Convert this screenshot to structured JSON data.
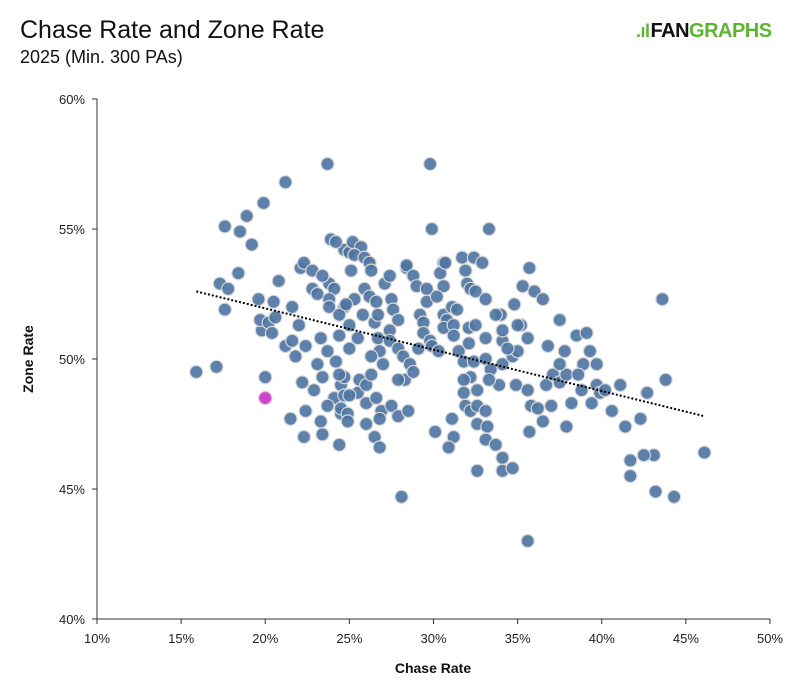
{
  "header": {
    "title": "Chase Rate and Zone Rate",
    "subtitle": "2025 (Min. 300 PAs)",
    "logo_text_1": "FAN",
    "logo_text_2": "GRAPHS"
  },
  "colors": {
    "point": "#4f76a3",
    "highlight": "#cc44cc",
    "trend": "#000000",
    "logo_green": "#5cb531"
  },
  "chart_data": {
    "type": "scatter",
    "title": "Chase Rate and Zone Rate",
    "subtitle": "2025 (Min. 300 PAs)",
    "xlabel": "Chase Rate",
    "ylabel": "Zone Rate",
    "xlim": [
      10,
      50
    ],
    "ylim": [
      40,
      60
    ],
    "xticks": [
      10,
      15,
      20,
      25,
      30,
      35,
      40,
      45,
      50
    ],
    "yticks": [
      40,
      45,
      50,
      55,
      60
    ],
    "xtick_labels": [
      "10%",
      "15%",
      "20%",
      "25%",
      "30%",
      "35%",
      "40%",
      "45%",
      "50%"
    ],
    "ytick_labels": [
      "40%",
      "45%",
      "50%",
      "55%",
      "60%"
    ],
    "grid": false,
    "trendline": {
      "style": "dotted",
      "x": [
        15.9,
        46.1
      ],
      "y": [
        52.6,
        47.8
      ]
    },
    "highlight": {
      "x": 20.0,
      "y": 48.5
    },
    "points": [
      [
        15.9,
        49.5
      ],
      [
        17.1,
        49.7
      ],
      [
        17.6,
        55.1
      ],
      [
        17.3,
        52.9
      ],
      [
        17.6,
        51.9
      ],
      [
        17.8,
        52.7
      ],
      [
        18.4,
        53.3
      ],
      [
        18.5,
        54.9
      ],
      [
        18.9,
        55.5
      ],
      [
        19.2,
        54.4
      ],
      [
        19.9,
        56.0
      ],
      [
        21.2,
        56.8
      ],
      [
        23.7,
        57.5
      ],
      [
        29.8,
        57.5
      ],
      [
        29.9,
        55.0
      ],
      [
        33.3,
        55.0
      ],
      [
        19.6,
        52.3
      ],
      [
        19.8,
        51.1
      ],
      [
        19.7,
        51.5
      ],
      [
        20.0,
        49.3
      ],
      [
        20.2,
        51.4
      ],
      [
        20.5,
        52.2
      ],
      [
        20.4,
        51.0
      ],
      [
        20.8,
        53.0
      ],
      [
        20.6,
        51.6
      ],
      [
        21.2,
        50.5
      ],
      [
        21.6,
        52.0
      ],
      [
        21.6,
        50.7
      ],
      [
        22.1,
        53.5
      ],
      [
        22.3,
        53.7
      ],
      [
        22.4,
        50.5
      ],
      [
        22.0,
        51.3
      ],
      [
        21.8,
        50.1
      ],
      [
        22.2,
        49.1
      ],
      [
        22.4,
        48.0
      ],
      [
        22.9,
        48.8
      ],
      [
        23.3,
        47.6
      ],
      [
        24.1,
        48.5
      ],
      [
        24.4,
        46.7
      ],
      [
        28.1,
        44.7
      ],
      [
        35.6,
        43.0
      ],
      [
        21.5,
        47.7
      ],
      [
        22.3,
        47.0
      ],
      [
        23.4,
        47.1
      ],
      [
        23.1,
        49.8
      ],
      [
        23.3,
        50.8
      ],
      [
        23.4,
        49.3
      ],
      [
        23.7,
        48.2
      ],
      [
        23.8,
        52.9
      ],
      [
        24.1,
        52.7
      ],
      [
        24.2,
        49.9
      ],
      [
        24.5,
        49.0
      ],
      [
        24.5,
        47.9
      ],
      [
        25.0,
        50.4
      ],
      [
        25.1,
        53.4
      ],
      [
        25.0,
        51.3
      ],
      [
        24.7,
        49.3
      ],
      [
        24.7,
        48.6
      ],
      [
        25.5,
        48.7
      ],
      [
        25.6,
        49.2
      ],
      [
        25.8,
        51.7
      ],
      [
        25.5,
        50.8
      ],
      [
        25.3,
        52.3
      ],
      [
        24.7,
        52.0
      ],
      [
        24.7,
        54.2
      ],
      [
        25.0,
        54.1
      ],
      [
        25.2,
        54.5
      ],
      [
        23.9,
        54.6
      ],
      [
        24.2,
        54.5
      ],
      [
        22.8,
        52.7
      ],
      [
        23.1,
        52.5
      ],
      [
        22.8,
        53.4
      ],
      [
        23.4,
        53.2
      ],
      [
        23.7,
        50.3
      ],
      [
        24.4,
        50.9
      ],
      [
        23.8,
        52.3
      ],
      [
        23.8,
        52.0
      ],
      [
        24.4,
        51.7
      ],
      [
        24.8,
        52.1
      ],
      [
        24.4,
        49.4
      ],
      [
        24.5,
        48.1
      ],
      [
        24.9,
        47.9
      ],
      [
        25.0,
        48.6
      ],
      [
        24.9,
        47.6
      ],
      [
        25.7,
        54.3
      ],
      [
        25.3,
        54.0
      ],
      [
        25.9,
        53.9
      ],
      [
        26.2,
        53.7
      ],
      [
        26.3,
        53.4
      ],
      [
        25.9,
        52.7
      ],
      [
        26.2,
        52.4
      ],
      [
        26.6,
        52.2
      ],
      [
        26.5,
        51.4
      ],
      [
        26.7,
        50.8
      ],
      [
        26.8,
        50.3
      ],
      [
        27.0,
        49.8
      ],
      [
        26.0,
        49.0
      ],
      [
        26.0,
        48.3
      ],
      [
        26.3,
        50.1
      ],
      [
        26.3,
        49.4
      ],
      [
        26.6,
        48.5
      ],
      [
        26.9,
        48.0
      ],
      [
        26.8,
        47.7
      ],
      [
        26.0,
        47.5
      ],
      [
        26.5,
        47.0
      ],
      [
        26.8,
        46.6
      ],
      [
        26.7,
        51.7
      ],
      [
        27.1,
        52.9
      ],
      [
        27.4,
        53.2
      ],
      [
        27.5,
        52.3
      ],
      [
        27.6,
        51.9
      ],
      [
        27.4,
        51.1
      ],
      [
        27.4,
        50.7
      ],
      [
        27.9,
        51.5
      ],
      [
        27.9,
        50.4
      ],
      [
        28.2,
        50.1
      ],
      [
        28.6,
        49.8
      ],
      [
        28.3,
        49.2
      ],
      [
        28.8,
        49.5
      ],
      [
        29.1,
        50.4
      ],
      [
        27.5,
        48.2
      ],
      [
        27.9,
        47.8
      ],
      [
        28.5,
        48.0
      ],
      [
        27.9,
        49.2
      ],
      [
        28.4,
        53.5
      ],
      [
        28.4,
        53.6
      ],
      [
        28.8,
        53.2
      ],
      [
        29.0,
        52.8
      ],
      [
        29.6,
        52.7
      ],
      [
        29.6,
        52.2
      ],
      [
        29.2,
        51.7
      ],
      [
        29.4,
        51.4
      ],
      [
        29.4,
        51.0
      ],
      [
        29.8,
        50.7
      ],
      [
        29.9,
        50.5
      ],
      [
        30.3,
        50.3
      ],
      [
        30.6,
        53.7
      ],
      [
        30.4,
        53.3
      ],
      [
        30.7,
        53.7
      ],
      [
        30.6,
        52.8
      ],
      [
        30.2,
        52.4
      ],
      [
        30.6,
        51.7
      ],
      [
        30.8,
        51.5
      ],
      [
        30.6,
        51.2
      ],
      [
        31.1,
        52.0
      ],
      [
        31.4,
        51.9
      ],
      [
        31.2,
        51.3
      ],
      [
        31.2,
        50.9
      ],
      [
        31.5,
        50.3
      ],
      [
        31.7,
        53.9
      ],
      [
        31.9,
        53.4
      ],
      [
        32.0,
        52.9
      ],
      [
        32.2,
        52.7
      ],
      [
        32.5,
        52.6
      ],
      [
        32.4,
        53.9
      ],
      [
        32.9,
        53.7
      ],
      [
        32.1,
        51.2
      ],
      [
        32.1,
        50.6
      ],
      [
        31.8,
        49.9
      ],
      [
        32.2,
        49.3
      ],
      [
        31.8,
        48.7
      ],
      [
        31.9,
        48.2
      ],
      [
        32.2,
        48.0
      ],
      [
        32.6,
        48.8
      ],
      [
        32.6,
        48.2
      ],
      [
        32.6,
        47.5
      ],
      [
        31.2,
        47.0
      ],
      [
        30.9,
        46.6
      ],
      [
        30.1,
        47.2
      ],
      [
        31.1,
        47.7
      ],
      [
        31.8,
        49.2
      ],
      [
        32.4,
        49.9
      ],
      [
        33.1,
        50.0
      ],
      [
        33.4,
        49.6
      ],
      [
        33.1,
        48.0
      ],
      [
        33.1,
        46.9
      ],
      [
        33.7,
        46.7
      ],
      [
        34.1,
        46.2
      ],
      [
        32.6,
        45.7
      ],
      [
        34.1,
        45.7
      ],
      [
        34.7,
        45.8
      ],
      [
        33.2,
        47.4
      ],
      [
        33.9,
        49.0
      ],
      [
        34.1,
        49.8
      ],
      [
        34.7,
        50.1
      ],
      [
        35.0,
        50.3
      ],
      [
        34.1,
        50.7
      ],
      [
        34.1,
        51.1
      ],
      [
        34.4,
        50.4
      ],
      [
        35.2,
        51.3
      ],
      [
        34.9,
        49.0
      ],
      [
        35.6,
        48.8
      ],
      [
        35.8,
        48.2
      ],
      [
        36.2,
        48.1
      ],
      [
        36.5,
        47.6
      ],
      [
        35.7,
        47.2
      ],
      [
        36.7,
        49.0
      ],
      [
        37.1,
        49.4
      ],
      [
        37.5,
        49.1
      ],
      [
        37.9,
        49.4
      ],
      [
        37.5,
        49.8
      ],
      [
        37.8,
        50.3
      ],
      [
        38.5,
        50.9
      ],
      [
        39.1,
        51.0
      ],
      [
        39.3,
        50.3
      ],
      [
        38.9,
        49.8
      ],
      [
        38.6,
        49.4
      ],
      [
        38.8,
        48.8
      ],
      [
        39.7,
        49.0
      ],
      [
        39.7,
        49.8
      ],
      [
        39.9,
        48.7
      ],
      [
        41.1,
        49.0
      ],
      [
        40.6,
        48.0
      ],
      [
        41.4,
        47.4
      ],
      [
        41.7,
        46.1
      ],
      [
        41.7,
        45.5
      ],
      [
        42.3,
        47.7
      ],
      [
        42.7,
        48.7
      ],
      [
        43.1,
        46.3
      ],
      [
        43.2,
        44.9
      ],
      [
        43.6,
        52.3
      ],
      [
        43.8,
        49.2
      ],
      [
        44.3,
        44.7
      ],
      [
        46.1,
        46.4
      ],
      [
        42.5,
        46.3
      ],
      [
        39.4,
        48.3
      ],
      [
        40.2,
        48.8
      ],
      [
        33.3,
        49.2
      ],
      [
        34.0,
        51.7
      ],
      [
        33.1,
        52.3
      ],
      [
        33.1,
        50.8
      ],
      [
        34.8,
        52.1
      ],
      [
        35.3,
        52.8
      ],
      [
        35.7,
        53.5
      ],
      [
        35.0,
        51.3
      ],
      [
        36.8,
        50.5
      ],
      [
        36.0,
        52.6
      ],
      [
        36.5,
        52.3
      ],
      [
        37.5,
        51.5
      ],
      [
        37.0,
        48.2
      ],
      [
        37.9,
        47.4
      ],
      [
        38.2,
        48.3
      ],
      [
        35.6,
        50.8
      ],
      [
        33.7,
        51.7
      ],
      [
        32.5,
        51.3
      ]
    ]
  }
}
